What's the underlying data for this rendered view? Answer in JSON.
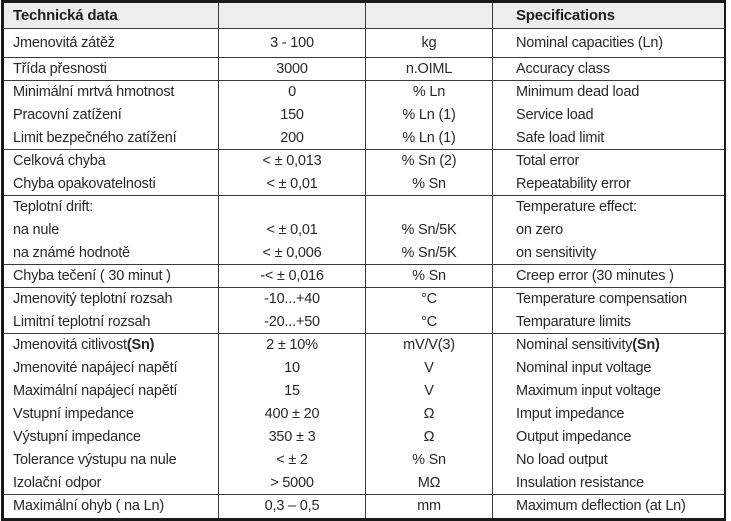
{
  "table": {
    "header_left": "Technická data",
    "header_right": "Specifications",
    "rows": [
      {
        "label_cs": "Jmenovitá zátěž",
        "value": "3 - 100",
        "unit": "kg",
        "label_en": "Nominal capacities (Ln)"
      },
      {
        "label_cs": "Třída přesnosti",
        "value": "3000",
        "unit": "n.OIML",
        "label_en": "Accuracy class"
      },
      {
        "label_cs": "Minimální mrtvá hmotnost",
        "value": "0",
        "unit": "% Ln",
        "label_en": "Minimum dead load"
      },
      {
        "label_cs": "Pracovní zatížení",
        "value": "150",
        "unit": "% Ln (1)",
        "label_en": "Service load"
      },
      {
        "label_cs": "Limit bezpečného zatížení",
        "value": "200",
        "unit": "% Ln (1)",
        "label_en": "Safe load limit"
      },
      {
        "label_cs": "Celková chyba",
        "value": "< ± 0,013",
        "unit": "% Sn (2)",
        "label_en": "Total error"
      },
      {
        "label_cs": "Chyba opakovatelnosti",
        "value": "< ± 0,01",
        "unit": "% Sn",
        "label_en": "Repeatability error"
      },
      {
        "label_cs": "Teplotní drift:",
        "value": "",
        "unit": "",
        "label_en": "Temperature effect:"
      },
      {
        "label_cs": "na nule",
        "value": "< ± 0,01",
        "unit": "% Sn/5K",
        "label_en": "on zero"
      },
      {
        "label_cs": "na známé hodnotě",
        "value": "< ± 0,006",
        "unit": "% Sn/5K",
        "label_en": "on sensitivity"
      },
      {
        "label_cs": "Chyba tečení ( 30 minut )",
        "value": "-< ± 0,016",
        "unit": "% Sn",
        "label_en": "Creep error (30 minutes )"
      },
      {
        "label_cs": "Jmenovitý teplotní rozsah",
        "value": "-10...+40",
        "unit": "°C",
        "label_en": "Temperature compensation"
      },
      {
        "label_cs": "Limitní teplotní rozsah",
        "value": "-20...+50",
        "unit": "°C",
        "label_en": "Temparature limits"
      },
      {
        "label_cs": "Jmenovitá citlivost ",
        "label_cs_bold": "(Sn)",
        "value": "2 ± 10%",
        "unit": "mV/V(3)",
        "label_en": "Nominal sensitivity ",
        "label_en_bold": "(Sn)"
      },
      {
        "label_cs": "Jmenovité napájecí napětí",
        "value": "10",
        "unit": "V",
        "label_en": "Nominal input voltage"
      },
      {
        "label_cs": "Maximální napájecí napětí",
        "value": "15",
        "unit": "V",
        "label_en": "Maximum input voltage"
      },
      {
        "label_cs": "Vstupní impedance",
        "value": "400 ± 20",
        "unit": "Ω",
        "label_en": "Imput impedance"
      },
      {
        "label_cs": "Výstupní impedance",
        "value": "350 ± 3",
        "unit": "Ω",
        "label_en": "Output impedance"
      },
      {
        "label_cs": "Tolerance výstupu na nule",
        "value": "< ± 2",
        "unit": "% Sn",
        "label_en": "No load output"
      },
      {
        "label_cs": "Izolační odpor",
        "value": "> 5000",
        "unit": "MΩ",
        "label_en": "Insulation resistance"
      },
      {
        "label_cs": "Maximální ohyb ( na Ln)",
        "value": "0,3 – 0,5",
        "unit": "mm",
        "label_en": "Maximum deflection (at Ln)"
      }
    ]
  },
  "colors": {
    "header_bg": "#ededed",
    "grid_line": "#3a3a3a",
    "outer_border": "#1a1a1a",
    "text": "#282828"
  }
}
